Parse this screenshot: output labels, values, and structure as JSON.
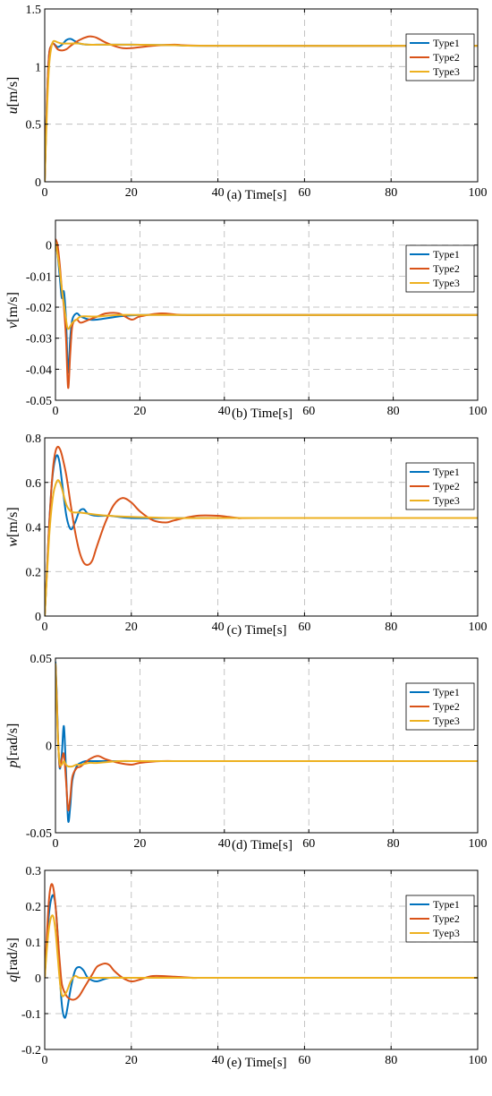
{
  "chart_data": [
    {
      "type": "line",
      "caption": "(a)  Time[s]",
      "ylabel_var": "u",
      "ylabel_unit": "[m/s]",
      "xlim": [
        0,
        100
      ],
      "ylim": [
        0,
        1.5
      ],
      "xticks": [
        "0",
        "20",
        "40",
        "60",
        "80",
        "100"
      ],
      "xtick_values": [
        0,
        20,
        40,
        60,
        80,
        100
      ],
      "yticks": [
        "0",
        "0.5",
        "1",
        "1.5"
      ],
      "ytick_values": [
        0,
        0.5,
        1,
        1.5
      ],
      "grid": true,
      "legend": "top-right",
      "series": [
        {
          "name": "Type1",
          "color": "#0072BD",
          "x": [
            0,
            0.5,
            1,
            1.5,
            2,
            3,
            4,
            5,
            6,
            7,
            8,
            10,
            12,
            15,
            20,
            30,
            40,
            100
          ],
          "y": [
            0,
            0.7,
            1.1,
            1.18,
            1.2,
            1.17,
            1.19,
            1.23,
            1.24,
            1.22,
            1.2,
            1.19,
            1.19,
            1.19,
            1.19,
            1.185,
            1.18,
            1.18
          ]
        },
        {
          "name": "Type2",
          "color": "#D95319",
          "x": [
            0,
            0.5,
            1,
            1.5,
            2,
            3,
            4,
            5,
            6,
            8,
            10,
            11,
            12,
            14,
            16,
            18,
            20,
            25,
            30,
            40,
            100
          ],
          "y": [
            0,
            0.7,
            1.1,
            1.18,
            1.2,
            1.15,
            1.14,
            1.15,
            1.18,
            1.23,
            1.26,
            1.26,
            1.25,
            1.21,
            1.18,
            1.16,
            1.16,
            1.18,
            1.19,
            1.18,
            1.18
          ]
        },
        {
          "name": "Type3",
          "color": "#EDB120",
          "x": [
            0,
            0.5,
            1,
            1.5,
            2,
            3,
            4,
            5,
            6,
            8,
            10,
            15,
            20,
            30,
            40,
            100
          ],
          "y": [
            0,
            0.6,
            1.0,
            1.16,
            1.22,
            1.21,
            1.2,
            1.2,
            1.2,
            1.2,
            1.19,
            1.19,
            1.19,
            1.185,
            1.18,
            1.18
          ]
        }
      ]
    },
    {
      "type": "line",
      "caption": "(b)   Time[s]",
      "ylabel_var": "v",
      "ylabel_unit": "[m/s]",
      "xlim": [
        0,
        100
      ],
      "ylim": [
        -0.05,
        0.008
      ],
      "xticks": [
        "0",
        "20",
        "40",
        "60",
        "80",
        "100"
      ],
      "xtick_values": [
        0,
        20,
        40,
        60,
        80,
        100
      ],
      "yticks": [
        "0",
        "-0.01",
        "-0.02",
        "-0.03",
        "-0.04",
        "-0.05"
      ],
      "ytick_values": [
        0,
        -0.01,
        -0.02,
        -0.03,
        -0.04,
        -0.05
      ],
      "grid": true,
      "legend": "top-right",
      "series": [
        {
          "name": "Type1",
          "color": "#0072BD",
          "x": [
            0,
            0.5,
            1,
            1.5,
            2,
            2.5,
            3,
            3.5,
            4,
            5,
            6,
            8,
            10,
            15,
            20,
            30,
            40,
            100
          ],
          "y": [
            0.001,
            -0.003,
            -0.01,
            -0.017,
            -0.015,
            -0.024,
            -0.041,
            -0.03,
            -0.024,
            -0.022,
            -0.023,
            -0.024,
            -0.024,
            -0.023,
            -0.0225,
            -0.0225,
            -0.0225,
            -0.0225
          ]
        },
        {
          "name": "Type2",
          "color": "#D95319",
          "x": [
            0,
            0.5,
            1,
            1.5,
            2,
            2.5,
            3,
            3.5,
            4,
            5,
            6,
            8,
            10,
            12,
            15,
            18,
            20,
            25,
            30,
            40,
            100
          ],
          "y": [
            0.002,
            0.0,
            -0.006,
            -0.014,
            -0.02,
            -0.03,
            -0.046,
            -0.035,
            -0.026,
            -0.024,
            -0.025,
            -0.024,
            -0.023,
            -0.022,
            -0.022,
            -0.024,
            -0.023,
            -0.022,
            -0.0225,
            -0.0225,
            -0.0225
          ]
        },
        {
          "name": "Type3",
          "color": "#EDB120",
          "x": [
            0,
            0.5,
            1,
            1.5,
            2,
            2.5,
            3,
            4,
            5,
            6,
            8,
            10,
            15,
            20,
            30,
            40,
            100
          ],
          "y": [
            0.001,
            -0.003,
            -0.008,
            -0.014,
            -0.019,
            -0.024,
            -0.027,
            -0.025,
            -0.024,
            -0.023,
            -0.023,
            -0.023,
            -0.0225,
            -0.0225,
            -0.0225,
            -0.0225,
            -0.0225
          ]
        }
      ]
    },
    {
      "type": "line",
      "caption": "(c)  Time[s]",
      "ylabel_var": "w",
      "ylabel_unit": "[m/s]",
      "xlim": [
        0,
        100
      ],
      "ylim": [
        0,
        0.8
      ],
      "xticks": [
        "0",
        "20",
        "40",
        "60",
        "80",
        "100"
      ],
      "xtick_values": [
        0,
        20,
        40,
        60,
        80,
        100
      ],
      "yticks": [
        "0",
        "0.2",
        "0.4",
        "0.6",
        "0.8"
      ],
      "ytick_values": [
        0,
        0.2,
        0.4,
        0.6,
        0.8
      ],
      "grid": true,
      "legend": "top-right",
      "series": [
        {
          "name": "Type1",
          "color": "#0072BD",
          "x": [
            0,
            0.5,
            1,
            1.5,
            2,
            2.5,
            3,
            3.5,
            4,
            5,
            6,
            7,
            8,
            9,
            10,
            12,
            15,
            20,
            30,
            40,
            100
          ],
          "y": [
            0,
            0.2,
            0.4,
            0.56,
            0.66,
            0.71,
            0.72,
            0.68,
            0.6,
            0.45,
            0.39,
            0.42,
            0.47,
            0.48,
            0.46,
            0.45,
            0.45,
            0.44,
            0.44,
            0.44,
            0.44
          ]
        },
        {
          "name": "Type2",
          "color": "#D95319",
          "x": [
            0,
            0.5,
            1,
            1.5,
            2,
            2.5,
            3,
            3.5,
            4,
            5,
            6,
            7,
            8,
            9,
            10,
            11,
            12,
            14,
            16,
            18,
            20,
            22,
            25,
            28,
            30,
            35,
            40,
            45,
            50,
            100
          ],
          "y": [
            0,
            0.2,
            0.4,
            0.56,
            0.68,
            0.74,
            0.76,
            0.75,
            0.72,
            0.63,
            0.5,
            0.38,
            0.29,
            0.24,
            0.23,
            0.25,
            0.31,
            0.42,
            0.5,
            0.53,
            0.51,
            0.47,
            0.43,
            0.42,
            0.43,
            0.45,
            0.45,
            0.44,
            0.44,
            0.44
          ]
        },
        {
          "name": "Type3",
          "color": "#EDB120",
          "x": [
            0,
            0.5,
            1,
            1.5,
            2,
            2.5,
            3,
            3.5,
            4,
            5,
            6,
            7,
            8,
            10,
            12,
            15,
            20,
            30,
            40,
            100
          ],
          "y": [
            0,
            0.18,
            0.35,
            0.47,
            0.55,
            0.59,
            0.61,
            0.6,
            0.57,
            0.5,
            0.47,
            0.465,
            0.465,
            0.46,
            0.455,
            0.45,
            0.445,
            0.44,
            0.44,
            0.44
          ]
        }
      ]
    },
    {
      "type": "line",
      "caption": "(d)   Time[s]",
      "ylabel_var": "p",
      "ylabel_unit": "[rad/s]",
      "xlim": [
        0,
        100
      ],
      "ylim": [
        -0.05,
        0.05
      ],
      "xticks": [
        "0",
        "20",
        "40",
        "60",
        "80",
        "100"
      ],
      "xtick_values": [
        0,
        20,
        40,
        60,
        80,
        100
      ],
      "yticks": [
        "0.05",
        "0",
        "-0.05"
      ],
      "ytick_values": [
        0.05,
        0,
        -0.05
      ],
      "grid": true,
      "legend": "top-right",
      "series": [
        {
          "name": "Type1",
          "color": "#0072BD",
          "x": [
            0,
            0.3,
            0.6,
            1,
            1.5,
            2,
            2.5,
            3,
            3.5,
            4,
            5,
            6,
            7,
            8,
            10,
            15,
            20,
            30,
            40,
            100
          ],
          "y": [
            0.048,
            0.03,
            0.005,
            -0.013,
            -0.005,
            0.011,
            -0.015,
            -0.043,
            -0.035,
            -0.02,
            -0.012,
            -0.01,
            -0.009,
            -0.009,
            -0.009,
            -0.009,
            -0.009,
            -0.009,
            -0.009,
            -0.009
          ]
        },
        {
          "name": "Type2",
          "color": "#D95319",
          "x": [
            0,
            0.3,
            0.6,
            1,
            1.5,
            2,
            2.5,
            3,
            3.5,
            4,
            5,
            6,
            8,
            10,
            12,
            15,
            18,
            20,
            25,
            30,
            40,
            100
          ],
          "y": [
            0.047,
            0.028,
            0.004,
            -0.012,
            -0.008,
            -0.005,
            -0.02,
            -0.037,
            -0.03,
            -0.018,
            -0.013,
            -0.012,
            -0.008,
            -0.006,
            -0.008,
            -0.01,
            -0.011,
            -0.01,
            -0.009,
            -0.009,
            -0.009,
            -0.009
          ]
        },
        {
          "name": "Type3",
          "color": "#EDB120",
          "x": [
            0,
            0.3,
            0.6,
            1,
            1.5,
            2,
            2.5,
            3,
            4,
            5,
            6,
            8,
            10,
            15,
            20,
            30,
            40,
            100
          ],
          "y": [
            0.047,
            0.025,
            0.003,
            -0.01,
            -0.011,
            -0.009,
            -0.011,
            -0.012,
            -0.012,
            -0.011,
            -0.011,
            -0.01,
            -0.01,
            -0.009,
            -0.009,
            -0.009,
            -0.009,
            -0.009
          ]
        }
      ]
    },
    {
      "type": "line",
      "caption": "(e)  Time[s]",
      "ylabel_var": "q",
      "ylabel_unit": "[rad/s]",
      "xlim": [
        0,
        100
      ],
      "ylim": [
        -0.2,
        0.3
      ],
      "xticks": [
        "0",
        "20",
        "40",
        "60",
        "80",
        "100"
      ],
      "xtick_values": [
        0,
        20,
        40,
        60,
        80,
        100
      ],
      "yticks": [
        "0.3",
        "0.2",
        "0.1",
        "0",
        "-0.1",
        "-0.2"
      ],
      "ytick_values": [
        0.3,
        0.2,
        0.1,
        0,
        -0.1,
        -0.2
      ],
      "grid": true,
      "legend": "top-right",
      "series": [
        {
          "name": "Type1",
          "color": "#0072BD",
          "x": [
            0,
            0.5,
            1,
            1.5,
            2,
            2.5,
            3,
            3.5,
            4,
            4.5,
            5,
            6,
            7,
            8,
            9,
            10,
            12,
            15,
            20,
            30,
            40,
            100
          ],
          "y": [
            0,
            0.1,
            0.18,
            0.22,
            0.23,
            0.2,
            0.12,
            0.0,
            -0.08,
            -0.11,
            -0.1,
            -0.03,
            0.02,
            0.03,
            0.02,
            0.0,
            -0.01,
            0.0,
            0.0,
            0.0,
            0.0,
            0.0
          ]
        },
        {
          "name": "Type2",
          "color": "#D95319",
          "x": [
            0,
            0.5,
            1,
            1.5,
            2,
            2.5,
            3,
            3.5,
            4,
            5,
            6,
            7,
            8,
            9,
            10,
            11,
            12,
            13,
            14,
            15,
            16,
            18,
            20,
            22,
            25,
            30,
            35,
            40,
            100
          ],
          "y": [
            0,
            0.12,
            0.22,
            0.26,
            0.25,
            0.2,
            0.12,
            0.04,
            -0.02,
            -0.05,
            -0.06,
            -0.06,
            -0.05,
            -0.03,
            -0.01,
            0.01,
            0.03,
            0.037,
            0.04,
            0.035,
            0.02,
            0.0,
            -0.01,
            -0.005,
            0.005,
            0.003,
            0.0,
            0.0,
            0.0
          ]
        },
        {
          "name": "Tyep3",
          "color": "#EDB120",
          "x": [
            0,
            0.5,
            1,
            1.5,
            2,
            2.5,
            3,
            3.5,
            4,
            5,
            6,
            7,
            8,
            10,
            15,
            20,
            40,
            100
          ],
          "y": [
            0,
            0.08,
            0.14,
            0.17,
            0.17,
            0.13,
            0.06,
            -0.01,
            -0.05,
            -0.04,
            -0.01,
            0.005,
            0.0,
            0.0,
            0.0,
            0.0,
            0.0,
            0.0
          ]
        }
      ]
    }
  ]
}
